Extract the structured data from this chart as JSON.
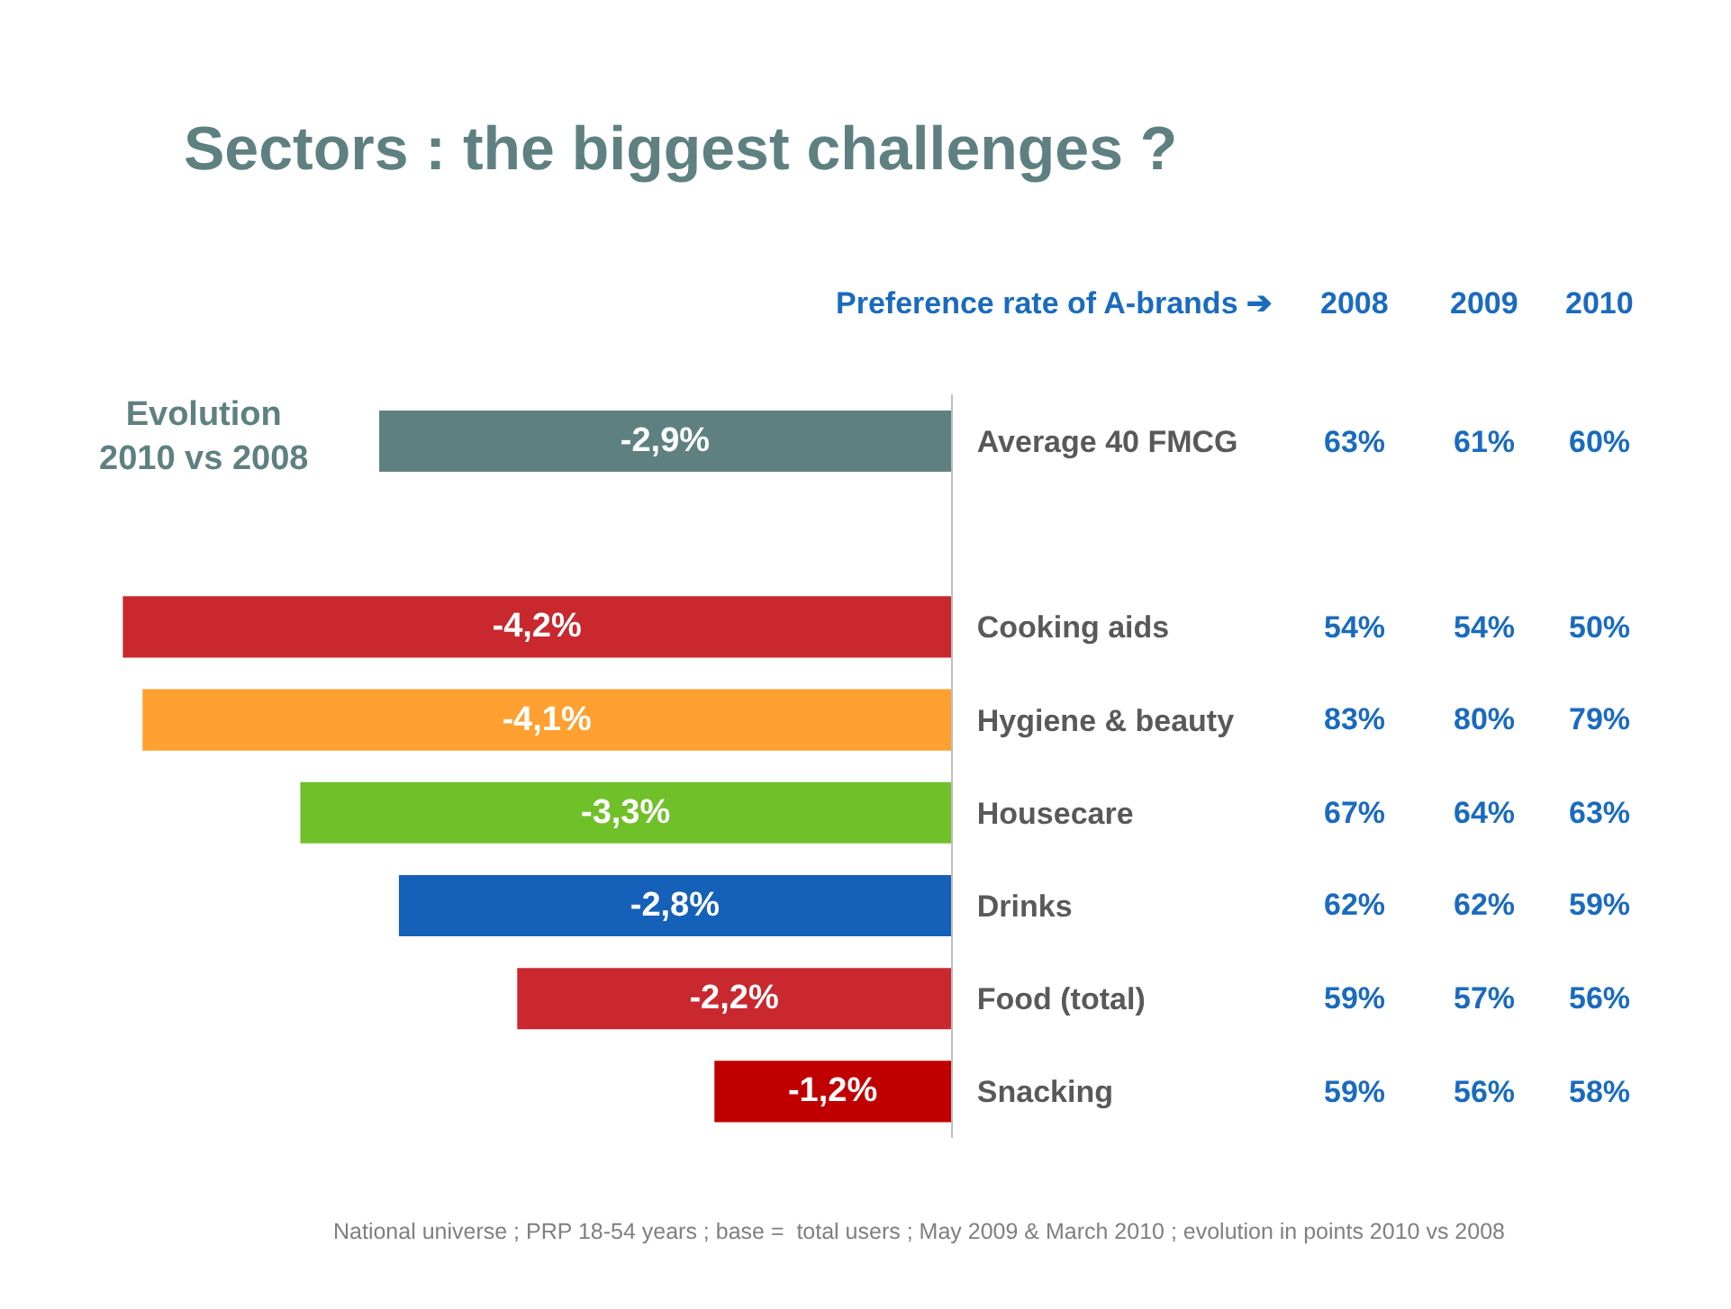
{
  "chart_data": {
    "type": "bar",
    "orientation": "horizontal",
    "title": "Sectors : the biggest challenges ?",
    "categories": [
      "Average 40 FMCG",
      null,
      "Cooking aids",
      "Hygiene & beauty",
      "Housecare",
      "Drinks",
      "Food (total)",
      "Snacking"
    ],
    "values": [
      -2.9,
      null,
      -4.2,
      -4.1,
      -3.3,
      -2.8,
      -2.2,
      -1.2
    ],
    "colors": [
      "#5f8080",
      "#ffffff",
      "#c8282e",
      "#ffa030",
      "#70c02a",
      "#1560b8",
      "#c8282e",
      "#c00000"
    ],
    "value_labels": [
      "-2,9%",
      null,
      "-4,2%",
      "-4,1%",
      "-3,3%",
      "-2,8%",
      "-2,2%",
      "-1,2%"
    ],
    "grid": false,
    "annotations": [
      "Evolution\n2010 vs 2008",
      "Preference rate of A-brands ➔",
      "2008",
      "2009",
      "2010",
      "63%",
      "61%",
      "60%",
      "54%",
      "54%",
      "50%",
      "83%",
      "80%",
      "79%",
      "67%",
      "64%",
      "63%",
      "62%",
      "62%",
      "59%",
      "59%",
      "57%",
      "56%",
      "59%",
      "56%",
      "58%",
      "National universe ; PRP 18-54 years ; base =  total users ; May 2009 & March 2010 ; evolution in points 2010 vs 2008"
    ]
  }
}
